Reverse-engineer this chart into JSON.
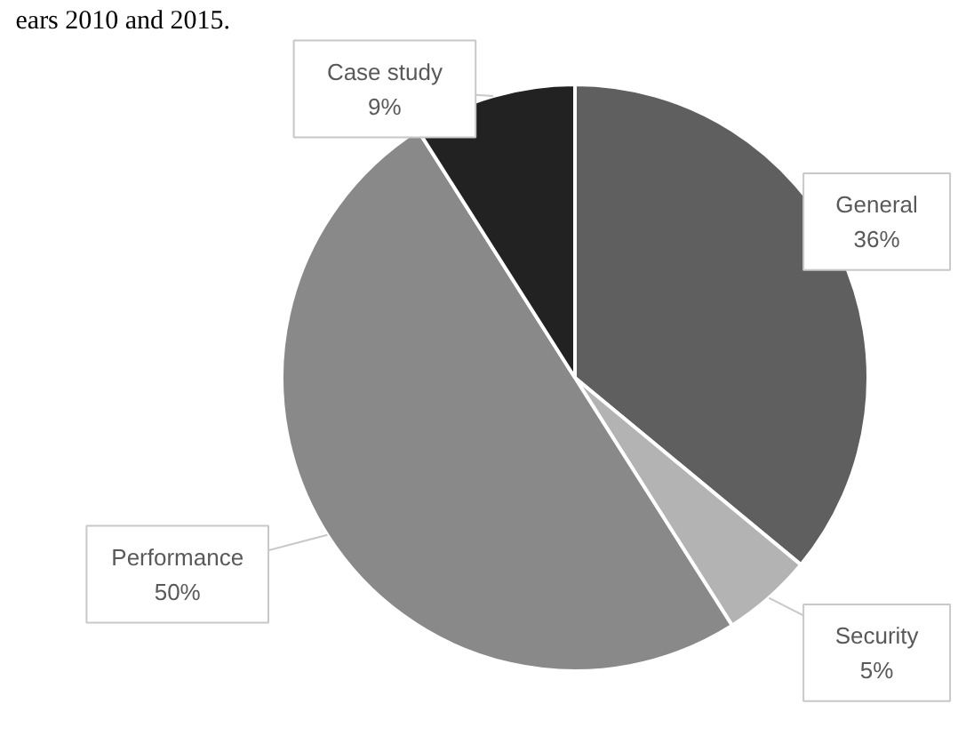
{
  "chart_data": {
    "type": "pie",
    "annotations": [
      "ears 2010 and 2015."
    ],
    "categories": [
      "General",
      "Security",
      "Performance",
      "Case study"
    ],
    "values": [
      36,
      5,
      50,
      9
    ],
    "value_labels": [
      "36%",
      "5%",
      "50%",
      "9%"
    ],
    "colors": [
      "#5f5f5f",
      "#b3b3b3",
      "#898989",
      "#222222"
    ]
  }
}
